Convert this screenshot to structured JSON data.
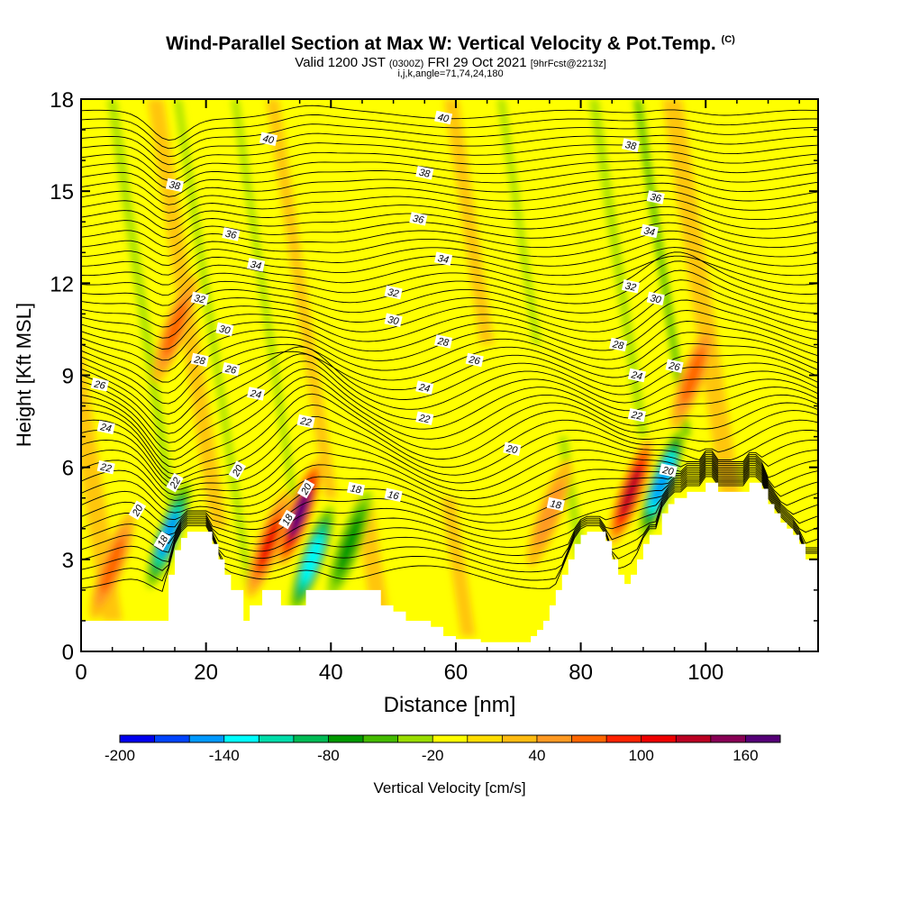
{
  "header": {
    "title": "Wind-Parallel Section at Max W: Vertical Velocity & Pot.Temp.",
    "title_mark": "(C)",
    "valid_prefix": "Valid 1200 JST",
    "valid_utc": "(0300Z)",
    "valid_date": "FRI 29 Oct 2021",
    "forecast": "[9hrFcst@2213z]",
    "indices": "i,j,k,angle=71,74,24,180"
  },
  "chart_data": {
    "type": "heatmap",
    "title": "Wind-Parallel Section at Max W: Vertical Velocity & Pot.Temp.",
    "xlabel": "Distance [nm]",
    "ylabel": "Height [Kft MSL]",
    "xlim": [
      0,
      118
    ],
    "ylim": [
      0,
      18
    ],
    "x_ticks": [
      "0",
      "20",
      "40",
      "60",
      "80",
      "100"
    ],
    "y_ticks": [
      "0",
      "3",
      "6",
      "9",
      "12",
      "15",
      "18"
    ],
    "colorbar": {
      "label": "Vertical Velocity [cm/s]",
      "min": -200,
      "max": 180,
      "step": 20,
      "tick_labels": [
        "-200",
        "-140",
        "-80",
        "-20",
        "40",
        "100",
        "160"
      ],
      "colors": [
        "#0000ee",
        "#0044ff",
        "#0099ff",
        "#00ffff",
        "#00ddaa",
        "#00bb55",
        "#009900",
        "#44bb00",
        "#99dd00",
        "#ffff00",
        "#ffdd00",
        "#ffbb11",
        "#ff9922",
        "#ff6600",
        "#ff2200",
        "#ee0000",
        "#bb0022",
        "#880055",
        "#550077"
      ]
    },
    "velocity_cores": [
      {
        "x": 5,
        "y": 2.8,
        "w": 70,
        "label": "updraft"
      },
      {
        "x": 14,
        "y": 3.8,
        "w": -150,
        "label": "downdraft"
      },
      {
        "x": 15,
        "y": 10.5,
        "w": 60,
        "label": "updraft"
      },
      {
        "x": 30,
        "y": 3.5,
        "w": 100,
        "label": "updraft"
      },
      {
        "x": 35,
        "y": 4.5,
        "w": 160,
        "label": "updraft"
      },
      {
        "x": 37,
        "y": 3.0,
        "w": -140,
        "label": "downdraft"
      },
      {
        "x": 43,
        "y": 3.5,
        "w": -80,
        "label": "downdraft"
      },
      {
        "x": 75,
        "y": 4.5,
        "w": 50,
        "label": "updraft"
      },
      {
        "x": 88,
        "y": 5.2,
        "w": 120,
        "label": "updraft"
      },
      {
        "x": 93,
        "y": 5.5,
        "w": -160,
        "label": "downdraft"
      },
      {
        "x": 98,
        "y": 9.0,
        "w": 60,
        "label": "updraft"
      }
    ],
    "terrain_top_kft": {
      "x": [
        0,
        10,
        11,
        13,
        14,
        15,
        16,
        17,
        18,
        19,
        20,
        21,
        22,
        23,
        24,
        26,
        27,
        29,
        30,
        31,
        32,
        34,
        35,
        36,
        37,
        38,
        40,
        42,
        44,
        46,
        48,
        50,
        52,
        54,
        56,
        58,
        60,
        62,
        64,
        66,
        68,
        70,
        71,
        72,
        73,
        74,
        75,
        76,
        77,
        78,
        79,
        80,
        81,
        82,
        83,
        84,
        85,
        86,
        87,
        88,
        89,
        90,
        91,
        92,
        93,
        94,
        95,
        96,
        97,
        98,
        99,
        100,
        101,
        102,
        103,
        104,
        105,
        106,
        107,
        108,
        109,
        110,
        111,
        112,
        113,
        114,
        115,
        116,
        117,
        118
      ],
      "y": [
        1.0,
        1.0,
        1.0,
        1.0,
        2.5,
        3.3,
        3.7,
        3.9,
        3.9,
        3.9,
        3.9,
        3.5,
        3.0,
        2.5,
        2.0,
        1.0,
        1.5,
        2.0,
        2.0,
        2.0,
        1.5,
        1.5,
        1.5,
        2.0,
        2.0,
        2.0,
        2.0,
        2.0,
        2.0,
        2.0,
        1.5,
        1.3,
        1.0,
        1.0,
        0.8,
        0.5,
        0.4,
        0.4,
        0.3,
        0.3,
        0.3,
        0.3,
        0.3,
        0.5,
        0.7,
        1.0,
        1.5,
        2.0,
        2.5,
        3.0,
        3.5,
        3.8,
        3.9,
        3.9,
        3.9,
        3.6,
        3.0,
        2.5,
        2.2,
        2.5,
        3.0,
        3.5,
        3.8,
        3.8,
        4.5,
        4.8,
        5.0,
        5.0,
        5.2,
        5.2,
        5.2,
        5.5,
        5.5,
        5.2,
        5.2,
        5.2,
        5.2,
        5.2,
        5.5,
        5.5,
        5.3,
        4.8,
        4.5,
        4.2,
        4.0,
        3.8,
        3.5,
        3.0,
        3.0,
        3.0
      ]
    },
    "theta_contours": [
      {
        "level": 16,
        "label": "16"
      },
      {
        "level": 18,
        "label": "18"
      },
      {
        "level": 20,
        "label": "20"
      },
      {
        "level": 22,
        "label": "22"
      },
      {
        "level": 24,
        "label": "24"
      },
      {
        "level": 26,
        "label": "26"
      },
      {
        "level": 28,
        "label": "28"
      },
      {
        "level": 30,
        "label": "30"
      },
      {
        "level": 32,
        "label": "32"
      },
      {
        "level": 34,
        "label": "34"
      },
      {
        "level": 36,
        "label": "36"
      },
      {
        "level": 38,
        "label": "38"
      },
      {
        "level": 40,
        "label": "40"
      }
    ],
    "contour_labels": [
      {
        "text": "40",
        "x": 58,
        "y": 17.4
      },
      {
        "text": "40",
        "x": 30,
        "y": 16.7
      },
      {
        "text": "38",
        "x": 55,
        "y": 15.6
      },
      {
        "text": "38",
        "x": 88,
        "y": 16.5
      },
      {
        "text": "38",
        "x": 15,
        "y": 15.2
      },
      {
        "text": "36",
        "x": 54,
        "y": 14.1
      },
      {
        "text": "36",
        "x": 24,
        "y": 13.6
      },
      {
        "text": "36",
        "x": 92,
        "y": 14.8
      },
      {
        "text": "34",
        "x": 58,
        "y": 12.8
      },
      {
        "text": "34",
        "x": 28,
        "y": 12.6
      },
      {
        "text": "34",
        "x": 91,
        "y": 13.7
      },
      {
        "text": "32",
        "x": 50,
        "y": 11.7
      },
      {
        "text": "32",
        "x": 19,
        "y": 11.5
      },
      {
        "text": "32",
        "x": 88,
        "y": 11.9
      },
      {
        "text": "30",
        "x": 50,
        "y": 10.8
      },
      {
        "text": "30",
        "x": 23,
        "y": 10.5
      },
      {
        "text": "30",
        "x": 92,
        "y": 11.5
      },
      {
        "text": "28",
        "x": 58,
        "y": 10.1
      },
      {
        "text": "28",
        "x": 19,
        "y": 9.5
      },
      {
        "text": "28",
        "x": 86,
        "y": 10.0
      },
      {
        "text": "26",
        "x": 63,
        "y": 9.5
      },
      {
        "text": "26",
        "x": 24,
        "y": 9.2
      },
      {
        "text": "26",
        "x": 3,
        "y": 8.7
      },
      {
        "text": "26",
        "x": 95,
        "y": 9.3
      },
      {
        "text": "24",
        "x": 55,
        "y": 8.6
      },
      {
        "text": "24",
        "x": 28,
        "y": 8.4
      },
      {
        "text": "24",
        "x": 4,
        "y": 7.3
      },
      {
        "text": "24",
        "x": 89,
        "y": 9.0
      },
      {
        "text": "22",
        "x": 55,
        "y": 7.6
      },
      {
        "text": "22",
        "x": 36,
        "y": 7.5
      },
      {
        "text": "22",
        "x": 4,
        "y": 6.0
      },
      {
        "text": "22",
        "x": 15,
        "y": 5.5
      },
      {
        "text": "22",
        "x": 89,
        "y": 7.7
      },
      {
        "text": "20",
        "x": 69,
        "y": 6.6
      },
      {
        "text": "20",
        "x": 25,
        "y": 5.9
      },
      {
        "text": "20",
        "x": 9,
        "y": 4.6
      },
      {
        "text": "20",
        "x": 36,
        "y": 5.3
      },
      {
        "text": "20",
        "x": 94,
        "y": 5.9
      },
      {
        "text": "18",
        "x": 44,
        "y": 5.3
      },
      {
        "text": "18",
        "x": 33,
        "y": 4.3
      },
      {
        "text": "18",
        "x": 13,
        "y": 3.6
      },
      {
        "text": "18",
        "x": 76,
        "y": 4.8
      },
      {
        "text": "16",
        "x": 50,
        "y": 5.1
      }
    ]
  }
}
